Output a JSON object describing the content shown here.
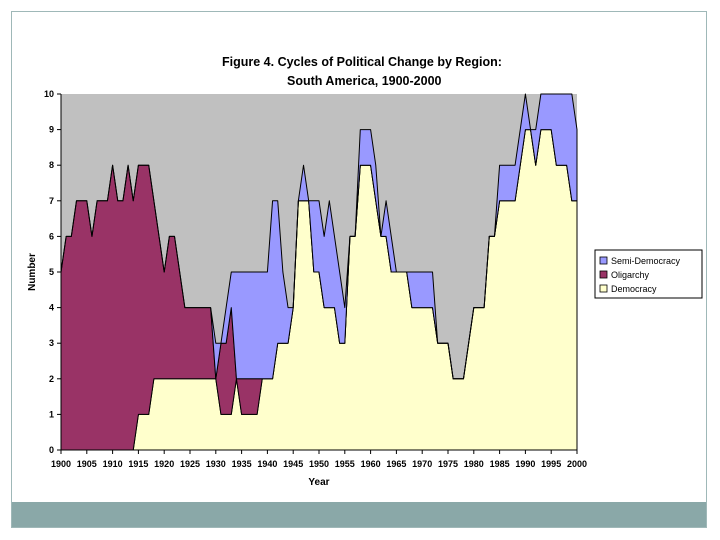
{
  "chart_data": {
    "type": "area",
    "stacked": true,
    "title": "Figure 4.  Cycles of Political Change by Region:",
    "subtitle": "South America, 1900-2000",
    "xlabel": "Year",
    "ylabel": "Number",
    "xlim": [
      1900,
      2000
    ],
    "ylim": [
      0,
      10
    ],
    "yticks": [
      0,
      1,
      2,
      3,
      4,
      5,
      6,
      7,
      8,
      9,
      10
    ],
    "xticks": [
      1900,
      1905,
      1910,
      1915,
      1920,
      1925,
      1930,
      1935,
      1940,
      1945,
      1950,
      1955,
      1960,
      1965,
      1970,
      1975,
      1980,
      1985,
      1990,
      1995,
      2000
    ],
    "x": [
      1900,
      1901,
      1902,
      1903,
      1904,
      1905,
      1906,
      1907,
      1908,
      1909,
      1910,
      1911,
      1912,
      1913,
      1914,
      1915,
      1916,
      1917,
      1918,
      1919,
      1920,
      1921,
      1922,
      1923,
      1924,
      1925,
      1926,
      1927,
      1928,
      1929,
      1930,
      1931,
      1932,
      1933,
      1934,
      1935,
      1936,
      1937,
      1938,
      1939,
      1940,
      1941,
      1942,
      1943,
      1944,
      1945,
      1946,
      1947,
      1948,
      1949,
      1950,
      1951,
      1952,
      1953,
      1954,
      1955,
      1956,
      1957,
      1958,
      1959,
      1960,
      1961,
      1962,
      1963,
      1964,
      1965,
      1966,
      1967,
      1968,
      1969,
      1970,
      1971,
      1972,
      1973,
      1974,
      1975,
      1976,
      1977,
      1978,
      1979,
      1980,
      1981,
      1982,
      1983,
      1984,
      1985,
      1986,
      1987,
      1988,
      1989,
      1990,
      1991,
      1992,
      1993,
      1994,
      1995,
      1996,
      1997,
      1998,
      1999,
      2000
    ],
    "series": [
      {
        "name": "Democracy",
        "color": "#ffffcc",
        "values": [
          0,
          0,
          0,
          0,
          0,
          0,
          0,
          0,
          0,
          0,
          0,
          0,
          0,
          0,
          0,
          1,
          1,
          1,
          2,
          2,
          2,
          2,
          2,
          2,
          2,
          2,
          2,
          2,
          2,
          2,
          2,
          1,
          1,
          1,
          2,
          1,
          1,
          1,
          1,
          2,
          2,
          2,
          3,
          3,
          3,
          4,
          7,
          7,
          7,
          5,
          5,
          4,
          4,
          4,
          3,
          3,
          6,
          6,
          8,
          8,
          8,
          7,
          6,
          6,
          5,
          5,
          5,
          5,
          4,
          4,
          4,
          4,
          4,
          3,
          3,
          3,
          2,
          2,
          2,
          3,
          4,
          4,
          4,
          6,
          6,
          7,
          7,
          7,
          7,
          8,
          9,
          9,
          8,
          9,
          9,
          9,
          8,
          8,
          8,
          7,
          7
        ]
      },
      {
        "name": "Oligarchy",
        "color": "#993366",
        "values": [
          5,
          6,
          6,
          7,
          7,
          7,
          6,
          7,
          7,
          7,
          8,
          7,
          7,
          8,
          7,
          7,
          7,
          7,
          5,
          4,
          3,
          4,
          4,
          3,
          2,
          2,
          2,
          2,
          2,
          2,
          0,
          2,
          2,
          3,
          0,
          1,
          1,
          1,
          1,
          0,
          0,
          0,
          0,
          0,
          0,
          0,
          0,
          0,
          0,
          0,
          0,
          0,
          0,
          0,
          0,
          0,
          0,
          0,
          0,
          0,
          0,
          0,
          0,
          0,
          0,
          0,
          0,
          0,
          0,
          0,
          0,
          0,
          0,
          0,
          0,
          0,
          0,
          0,
          0,
          0,
          0,
          0,
          0,
          0,
          0,
          0,
          0,
          0,
          0,
          0,
          0,
          0,
          0,
          0,
          0,
          0,
          0,
          0,
          0,
          0,
          0
        ]
      },
      {
        "name": "Semi-Democracy",
        "color": "#9999ff",
        "values": [
          0,
          0,
          0,
          0,
          0,
          0,
          0,
          0,
          0,
          0,
          0,
          0,
          0,
          0,
          0,
          0,
          0,
          0,
          0,
          0,
          0,
          0,
          0,
          0,
          0,
          0,
          0,
          0,
          0,
          0,
          1,
          0,
          1,
          1,
          3,
          3,
          3,
          3,
          3,
          3,
          3,
          5,
          4,
          2,
          1,
          0,
          0,
          1,
          0,
          2,
          2,
          2,
          3,
          2,
          2,
          1,
          0,
          0,
          1,
          1,
          1,
          1,
          0,
          1,
          1,
          0,
          0,
          0,
          1,
          1,
          1,
          1,
          1,
          0,
          0,
          0,
          0,
          0,
          0,
          0,
          0,
          0,
          0,
          0,
          0,
          1,
          1,
          1,
          1,
          1,
          1,
          0,
          1,
          1,
          1,
          1,
          2,
          2,
          2,
          3,
          2
        ]
      }
    ],
    "legend": {
      "position": "right",
      "entries": [
        {
          "label": "Semi-Democracy",
          "color": "#9999ff"
        },
        {
          "label": "Oligarchy",
          "color": "#993366"
        },
        {
          "label": "Democracy",
          "color": "#ffffcc"
        }
      ]
    },
    "plot_background": "#c0c0c0"
  }
}
